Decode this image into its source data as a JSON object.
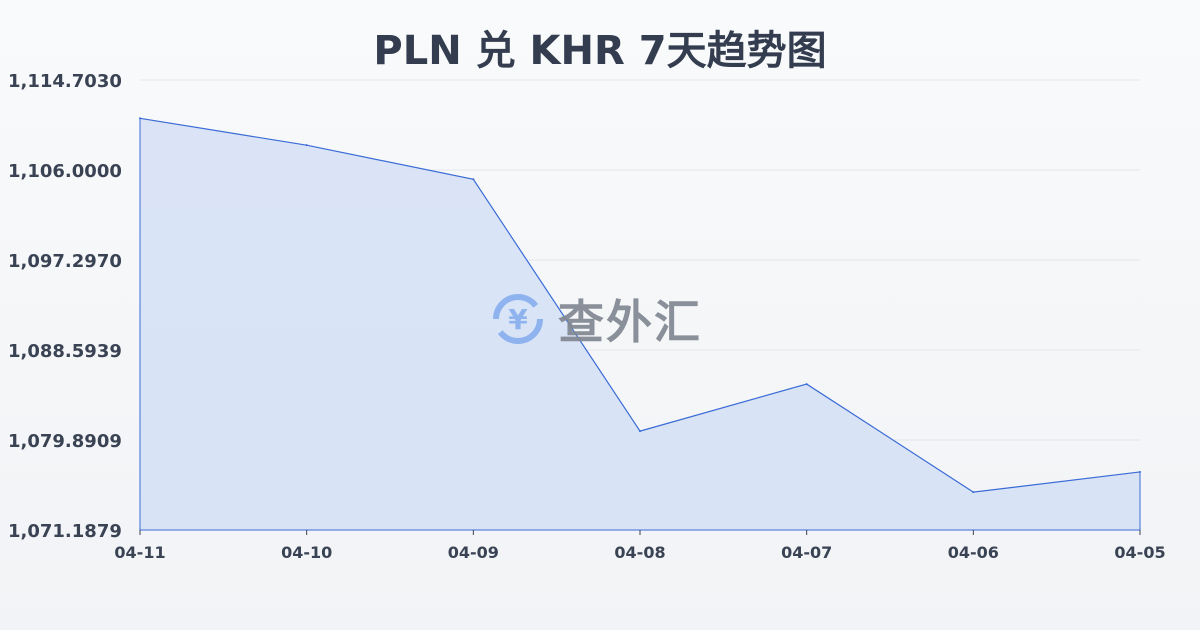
{
  "chart_data": {
    "type": "area",
    "title": "PLN 兑 KHR 7天趋势图",
    "categories": [
      "04-11",
      "04-10",
      "04-09",
      "04-08",
      "04-07",
      "04-06",
      "04-05"
    ],
    "series": [
      {
        "values": [
          1111.0,
          1108.4,
          1105.1,
          1080.75,
          1085.3,
          1074.85,
          1076.8
        ]
      }
    ],
    "y_ticks": [
      "1,114.7030",
      "1,106.0000",
      "1,097.2970",
      "1,088.5939",
      "1,079.8909",
      "1,071.1879"
    ],
    "ylim": [
      1071.1879,
      1114.703
    ],
    "grid": true,
    "line_color": "#3a6bd6",
    "fill_color": "#d6e1f5"
  },
  "watermark": {
    "text": "查外汇",
    "icon": "yen-exchange-icon"
  }
}
